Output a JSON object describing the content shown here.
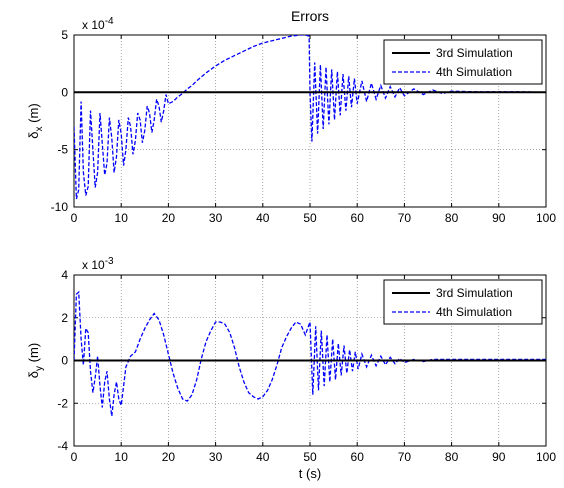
{
  "figure_title": "Errors",
  "chart_data": [
    {
      "type": "line",
      "title": "Errors",
      "xlabel": "",
      "ylabel": "δx (m)",
      "ylabel_main": "δ",
      "ylabel_sub": "x",
      "ylabel_unit": " (m)",
      "exponent_label": "x 10",
      "exponent": "-4",
      "xlim": [
        0,
        100
      ],
      "ylim": [
        -10,
        5
      ],
      "x_ticks": [
        0,
        10,
        20,
        30,
        40,
        50,
        60,
        70,
        80,
        90,
        100
      ],
      "y_ticks": [
        -10,
        -5,
        0,
        5
      ],
      "grid": true,
      "legend_position": "top-right",
      "series": [
        {
          "name": "3rd Simulation",
          "color": "#000000",
          "style": "solid",
          "x": [
            0,
            100
          ],
          "y": [
            0,
            0
          ]
        },
        {
          "name": "4th Simulation",
          "color": "#0000ff",
          "style": "dashed",
          "x": [
            0,
            0.5,
            1,
            1.5,
            2,
            2.5,
            3,
            3.5,
            4,
            4.5,
            5,
            5.5,
            6,
            6.5,
            7,
            7.5,
            8,
            8.5,
            9,
            9.5,
            10,
            10.5,
            11,
            11.5,
            12,
            12.5,
            13,
            13.5,
            14,
            14.5,
            15,
            15.5,
            16,
            16.5,
            17,
            17.5,
            18,
            18.5,
            19,
            19.5,
            20,
            21,
            22,
            23,
            24,
            25,
            26,
            28,
            30,
            32,
            34,
            36,
            38,
            40,
            42,
            44,
            46,
            48,
            49,
            49.8,
            50,
            50.4,
            51,
            51.6,
            52.2,
            52.8,
            53.4,
            54,
            54.6,
            55.2,
            55.8,
            56.4,
            57,
            57.6,
            58.2,
            58.8,
            59.4,
            60,
            61,
            62,
            63,
            64,
            65,
            66,
            67,
            68,
            69,
            70,
            72,
            74,
            76,
            78,
            80,
            85,
            90,
            95,
            100
          ],
          "y": [
            -3.0,
            -9.3,
            -8.5,
            -0.8,
            -7.0,
            -9.0,
            -8.2,
            -1.6,
            -5.0,
            -8.3,
            -7.0,
            -1.8,
            -4.5,
            -7.2,
            -6.2,
            -2.2,
            -4.0,
            -7.0,
            -5.6,
            -2.4,
            -3.6,
            -6.4,
            -5.0,
            -2.2,
            -3.0,
            -5.4,
            -4.2,
            -1.8,
            -2.4,
            -4.4,
            -3.3,
            -1.2,
            -1.8,
            -3.5,
            -2.4,
            -0.6,
            -1.2,
            -2.6,
            -1.6,
            -0.2,
            -1.0,
            -0.8,
            -0.4,
            -0.1,
            0.3,
            0.6,
            1.0,
            1.7,
            2.3,
            2.8,
            3.2,
            3.6,
            4.0,
            4.3,
            4.5,
            4.7,
            4.9,
            5.0,
            5.0,
            4.9,
            0.0,
            -4.3,
            2.6,
            -3.6,
            2.4,
            -3.2,
            2.2,
            -2.8,
            2.0,
            -2.4,
            1.8,
            -2.0,
            1.6,
            -1.6,
            1.4,
            -1.3,
            1.2,
            -1.0,
            1.0,
            -0.8,
            0.8,
            -0.6,
            0.6,
            -0.5,
            0.5,
            -0.4,
            0.4,
            -0.3,
            0.3,
            -0.2,
            0.2,
            -0.1,
            0.1,
            0.05,
            0.05,
            0.05,
            0.0
          ]
        }
      ]
    },
    {
      "type": "line",
      "title": "",
      "xlabel": "t (s)",
      "ylabel": "δy (m)",
      "ylabel_main": "δ",
      "ylabel_sub": "y",
      "ylabel_unit": " (m)",
      "exponent_label": "x 10",
      "exponent": "-3",
      "xlim": [
        0,
        100
      ],
      "ylim": [
        -4,
        4
      ],
      "x_ticks": [
        0,
        10,
        20,
        30,
        40,
        50,
        60,
        70,
        80,
        90,
        100
      ],
      "y_ticks": [
        -4,
        -2,
        0,
        2,
        4
      ],
      "grid": true,
      "legend_position": "top-right",
      "series": [
        {
          "name": "3rd Simulation",
          "color": "#000000",
          "style": "solid",
          "x": [
            0,
            100
          ],
          "y": [
            0,
            0
          ]
        },
        {
          "name": "4th Simulation",
          "color": "#0000ff",
          "style": "dashed",
          "x": [
            0,
            0.5,
            1,
            1.5,
            2,
            2.5,
            3,
            3.5,
            4,
            4.5,
            5,
            5.5,
            6,
            6.5,
            7,
            7.5,
            8,
            8.5,
            9,
            9.5,
            10,
            10.5,
            11,
            12,
            13,
            14,
            15,
            16,
            17,
            18,
            19,
            20,
            21,
            22,
            23,
            24,
            25,
            26,
            27,
            28,
            29,
            30,
            31,
            32,
            33,
            34,
            35,
            36,
            37,
            38,
            39,
            40,
            41,
            42,
            43,
            44,
            45,
            46,
            47,
            48,
            49,
            50,
            50.6,
            51.2,
            51.8,
            52.4,
            53,
            53.6,
            54.2,
            54.8,
            55.4,
            56,
            56.6,
            57.2,
            57.8,
            58.4,
            59,
            59.6,
            60.2,
            61,
            62,
            63,
            64,
            65,
            66,
            67,
            68,
            69,
            70,
            72,
            74,
            76,
            78,
            80,
            85,
            90,
            95,
            100
          ],
          "y": [
            0.0,
            3.1,
            3.2,
            1.0,
            -0.2,
            1.5,
            1.3,
            -0.5,
            -1.5,
            -0.8,
            0.2,
            -1.2,
            -2.2,
            -1.0,
            -0.5,
            -1.8,
            -2.6,
            -1.6,
            -1.0,
            -1.8,
            -2.1,
            -1.2,
            -0.3,
            0.2,
            0.4,
            1.0,
            1.5,
            1.9,
            2.2,
            1.9,
            1.2,
            0.3,
            -0.6,
            -1.3,
            -1.8,
            -1.9,
            -1.6,
            -0.9,
            0.1,
            0.9,
            1.4,
            1.8,
            1.8,
            1.7,
            1.3,
            0.6,
            -0.3,
            -1.0,
            -1.5,
            -1.7,
            -1.8,
            -1.7,
            -1.4,
            -0.9,
            -0.2,
            0.6,
            1.1,
            1.5,
            1.8,
            1.7,
            1.2,
            1.8,
            -1.6,
            1.6,
            -1.4,
            1.4,
            -1.2,
            1.2,
            -1.0,
            1.0,
            -0.9,
            0.8,
            -0.7,
            0.7,
            -0.6,
            0.5,
            -0.5,
            0.4,
            -0.4,
            0.3,
            -0.3,
            0.25,
            -0.25,
            0.2,
            -0.2,
            0.15,
            -0.15,
            0.1,
            -0.1,
            0.05,
            -0.05,
            0.05,
            0.05,
            0.05,
            0.05,
            0.05,
            0.05,
            0.05
          ]
        }
      ]
    }
  ]
}
